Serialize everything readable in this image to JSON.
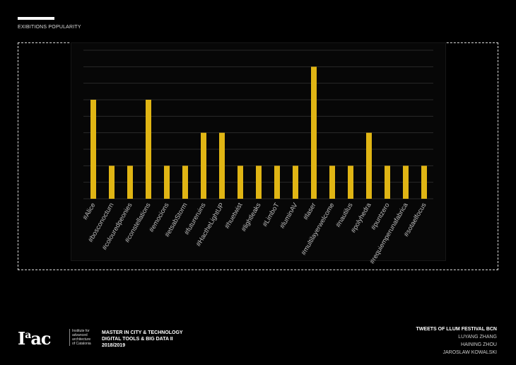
{
  "header": {
    "title": "EXIBITIONS POPULARITY"
  },
  "chart_data": {
    "type": "bar",
    "title": "EXIBITIONS POPULARITY",
    "categories": [
      "#Alice",
      "#bosconocturn",
      "#colouredpeonies",
      "#constellations",
      "#emocions",
      "#etsabStorm",
      "#futureruins",
      "#HactheLightUP",
      "#huetwist",
      "#lightleaks",
      "#LimboT",
      "#luminAV",
      "#laser",
      "#multilayerwelcome",
      "#nautilus",
      "#polyhedra",
      "#puntzero",
      "#requiemperunafabrica",
      "#sotaelfocus"
    ],
    "values": [
      3,
      1,
      1,
      3,
      1,
      1,
      2,
      2,
      1,
      1,
      1,
      1,
      4,
      1,
      1,
      2,
      1,
      1,
      1
    ],
    "ylim": [
      0,
      4.5
    ],
    "grid_step": 0.5,
    "grid": true,
    "xlabel": "",
    "ylabel": "",
    "bar_color": "#e0b514"
  },
  "footer": {
    "logo": "Iaac",
    "institute": [
      "Institute for",
      "advanced",
      "architecture",
      "of Catalonia"
    ],
    "program": [
      "MASTER IN CITY & TECHNOLOGY",
      "DIGITAL TOOLS & BIG DATA II",
      "2018/2019"
    ],
    "project_title": "TWEETS OF LLUM FESTIVAL BCN",
    "authors": [
      "LUYANG ZHANG",
      "HAINING ZHOU",
      "JAROSLAW KOWALSKI"
    ]
  }
}
